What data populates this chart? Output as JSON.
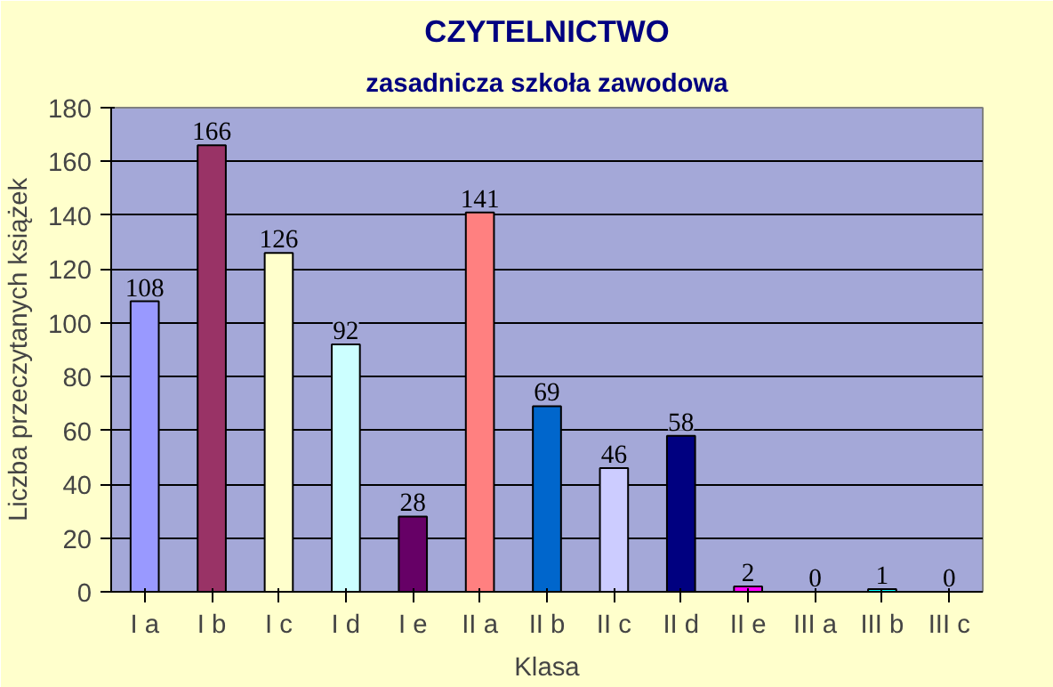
{
  "chart_data": {
    "type": "bar",
    "title": "CZYTELNICTWO",
    "subtitle": "zasadnicza szkoła zawodowa",
    "xlabel": "Klasa",
    "ylabel": "Liczba przeczytanych książek",
    "categories": [
      "I a",
      "I b",
      "I c",
      "I d",
      "I e",
      "II a",
      "II b",
      "II c",
      "II d",
      "II e",
      "III a",
      "III b",
      "III c"
    ],
    "values": [
      108,
      166,
      126,
      92,
      28,
      141,
      69,
      46,
      58,
      2,
      0,
      1,
      0
    ],
    "colors": [
      "#9999ff",
      "#993366",
      "#ffffcc",
      "#ccffff",
      "#660066",
      "#ff8080",
      "#0066cc",
      "#ccccff",
      "#000080",
      "#ff00ff",
      null,
      "#00ffff",
      null
    ],
    "ylim": [
      0,
      180
    ],
    "yticks": [
      0,
      20,
      40,
      60,
      80,
      100,
      120,
      140,
      160,
      180
    ],
    "grid": "y",
    "data_labels": true
  }
}
